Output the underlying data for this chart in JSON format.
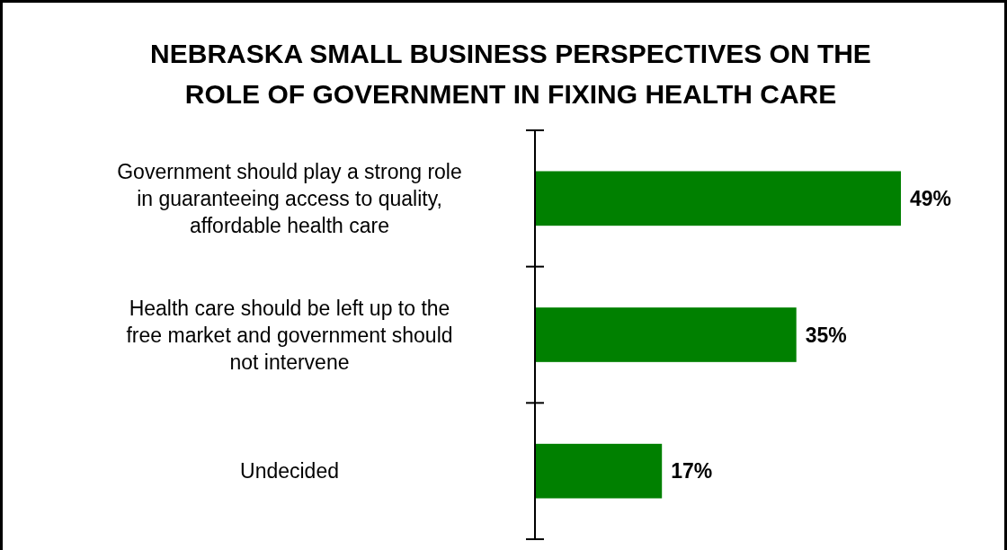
{
  "chart_data": {
    "type": "bar",
    "orientation": "horizontal",
    "title": "NEBRASKA SMALL BUSINESS PERSPECTIVES ON THE ROLE OF GOVERNMENT IN FIXING HEALTH CARE",
    "categories": [
      "Government should play a strong role in guaranteeing access to quality, affordable health care",
      "Health care should be left up to the free market and government should not intervene",
      "Undecided"
    ],
    "values": [
      49,
      35,
      17
    ],
    "color": "#008000",
    "data_labels": true,
    "value_labels": [
      "49%",
      "35%",
      "17%"
    ]
  }
}
